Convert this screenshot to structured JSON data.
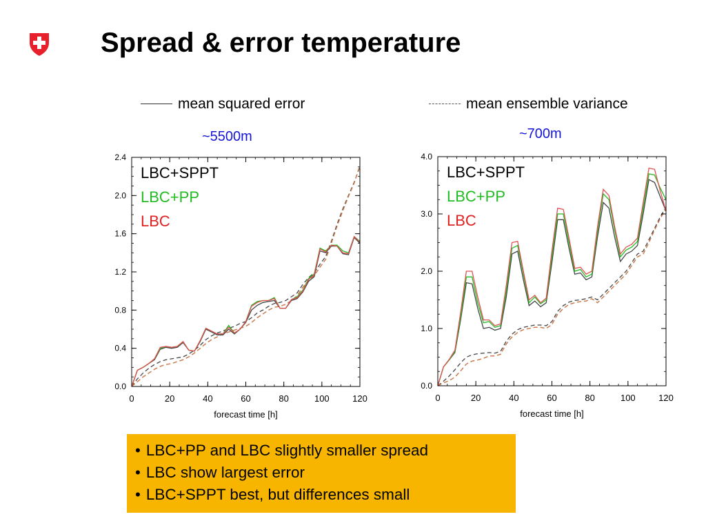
{
  "slide": {
    "title": "Spread & error temperature",
    "legend": {
      "solid_label": "mean squared error",
      "dashed_label": "mean ensemble variance"
    },
    "left_height": "~5500m",
    "right_height": "~700m",
    "bullets": [
      "LBC+PP and LBC slightly smaller spread",
      "LBC show largest error",
      "LBC+SPPT best, but differences small"
    ],
    "colors": {
      "height_label": "#1414d8",
      "callout_bg": "#f7b500",
      "logo_red": "#e8202b"
    }
  },
  "chart_data": [
    {
      "type": "line",
      "height_label": "~5500m",
      "xlabel": "forecast time [h]",
      "ylabel": "",
      "xlim": [
        0,
        120
      ],
      "ylim": [
        0,
        2.4
      ],
      "xticks": [
        0,
        20,
        40,
        60,
        80,
        100,
        120
      ],
      "yticks": [
        0.0,
        0.4,
        0.8,
        1.2,
        1.6,
        2.0,
        2.4
      ],
      "ytick_labels": [
        "0.0",
        "0.4",
        "0.8",
        "1.2",
        "1.6",
        "2.0",
        "2.4"
      ],
      "grid": false,
      "legend_labels": [
        {
          "text": "LBC+SPPT",
          "color": "#000000"
        },
        {
          "text": "LBC+PP",
          "color": "#22bb22"
        },
        {
          "text": "LBC",
          "color": "#e02020"
        }
      ],
      "x": [
        0,
        3,
        6,
        9,
        12,
        15,
        18,
        21,
        24,
        27,
        30,
        33,
        36,
        39,
        42,
        45,
        48,
        51,
        54,
        57,
        60,
        63,
        66,
        69,
        72,
        75,
        78,
        81,
        84,
        87,
        90,
        93,
        96,
        99,
        102,
        105,
        108,
        111,
        114,
        117,
        120
      ],
      "series": [
        {
          "name": "LBC+SPPT",
          "style": "solid",
          "color": "#444444",
          "values": [
            0.0,
            0.17,
            0.2,
            0.24,
            0.28,
            0.39,
            0.41,
            0.4,
            0.41,
            0.46,
            0.38,
            0.37,
            0.47,
            0.6,
            0.57,
            0.54,
            0.54,
            0.6,
            0.55,
            0.6,
            0.67,
            0.8,
            0.85,
            0.88,
            0.89,
            0.9,
            0.82,
            0.82,
            0.9,
            0.92,
            0.99,
            1.1,
            1.15,
            1.42,
            1.4,
            1.47,
            1.47,
            1.39,
            1.38,
            1.56,
            1.5
          ]
        },
        {
          "name": "LBC+PP",
          "style": "solid",
          "color": "#22bb22",
          "values": [
            0.0,
            0.17,
            0.2,
            0.24,
            0.29,
            0.4,
            0.42,
            0.41,
            0.42,
            0.47,
            0.38,
            0.37,
            0.48,
            0.61,
            0.58,
            0.55,
            0.55,
            0.64,
            0.56,
            0.6,
            0.68,
            0.85,
            0.89,
            0.9,
            0.9,
            0.93,
            0.82,
            0.82,
            0.91,
            0.94,
            1.01,
            1.13,
            1.18,
            1.45,
            1.42,
            1.48,
            1.48,
            1.42,
            1.4,
            1.57,
            1.52
          ]
        },
        {
          "name": "LBC",
          "style": "solid",
          "color": "#e05050",
          "values": [
            0.0,
            0.17,
            0.2,
            0.24,
            0.29,
            0.41,
            0.42,
            0.41,
            0.42,
            0.47,
            0.38,
            0.37,
            0.48,
            0.61,
            0.58,
            0.55,
            0.55,
            0.62,
            0.56,
            0.6,
            0.68,
            0.84,
            0.88,
            0.9,
            0.9,
            0.92,
            0.82,
            0.82,
            0.91,
            0.93,
            1.0,
            1.12,
            1.17,
            1.44,
            1.41,
            1.48,
            1.47,
            1.4,
            1.39,
            1.57,
            1.51
          ]
        },
        {
          "name": "LBC+SPPT",
          "style": "dashed",
          "color": "#444444",
          "values": [
            0.0,
            0.08,
            0.14,
            0.19,
            0.23,
            0.26,
            0.28,
            0.29,
            0.3,
            0.31,
            0.34,
            0.38,
            0.43,
            0.49,
            0.53,
            0.56,
            0.58,
            0.61,
            0.63,
            0.66,
            0.68,
            0.72,
            0.77,
            0.8,
            0.84,
            0.87,
            0.88,
            0.9,
            0.94,
            0.98,
            1.07,
            1.14,
            1.19,
            1.28,
            1.36,
            1.52,
            1.7,
            1.86,
            2.0,
            2.14,
            2.3
          ]
        },
        {
          "name": "LBC+PP",
          "style": "dashed",
          "color": "#22bb22",
          "values": [
            0.0,
            0.05,
            0.1,
            0.14,
            0.18,
            0.21,
            0.23,
            0.24,
            0.26,
            0.28,
            0.31,
            0.35,
            0.4,
            0.45,
            0.49,
            0.52,
            0.55,
            0.57,
            0.59,
            0.61,
            0.63,
            0.67,
            0.72,
            0.76,
            0.8,
            0.83,
            0.84,
            0.86,
            0.9,
            0.95,
            1.04,
            1.11,
            1.16,
            1.25,
            1.33,
            1.5,
            1.68,
            1.84,
            1.99,
            2.13,
            2.32
          ]
        },
        {
          "name": "LBC",
          "style": "dashed",
          "color": "#e07050",
          "values": [
            0.0,
            0.05,
            0.1,
            0.14,
            0.18,
            0.21,
            0.23,
            0.24,
            0.26,
            0.28,
            0.31,
            0.35,
            0.4,
            0.45,
            0.49,
            0.52,
            0.55,
            0.57,
            0.59,
            0.61,
            0.63,
            0.67,
            0.72,
            0.76,
            0.8,
            0.83,
            0.84,
            0.86,
            0.9,
            0.95,
            1.04,
            1.11,
            1.16,
            1.25,
            1.33,
            1.5,
            1.68,
            1.84,
            1.99,
            2.13,
            2.31
          ]
        }
      ]
    },
    {
      "type": "line",
      "height_label": "~700m",
      "xlabel": "forecast time [h]",
      "ylabel": "",
      "xlim": [
        0,
        120
      ],
      "ylim": [
        0,
        4.0
      ],
      "xticks": [
        0,
        20,
        40,
        60,
        80,
        100,
        120
      ],
      "yticks": [
        0.0,
        1.0,
        2.0,
        3.0,
        4.0
      ],
      "ytick_labels": [
        "0.0",
        "1.0",
        "2.0",
        "3.0",
        "4.0"
      ],
      "grid": false,
      "legend_labels": [
        {
          "text": "LBC+SPPT",
          "color": "#000000"
        },
        {
          "text": "LBC+PP",
          "color": "#22bb22"
        },
        {
          "text": "LBC",
          "color": "#e02020"
        }
      ],
      "x": [
        0,
        3,
        6,
        9,
        12,
        15,
        18,
        21,
        24,
        27,
        30,
        33,
        36,
        39,
        42,
        45,
        48,
        51,
        54,
        57,
        60,
        63,
        66,
        69,
        72,
        75,
        78,
        81,
        84,
        87,
        90,
        93,
        96,
        99,
        102,
        105,
        108,
        111,
        114,
        117,
        120
      ],
      "series": [
        {
          "name": "LBC+SPPT",
          "style": "solid",
          "color": "#444444",
          "values": [
            0.0,
            0.33,
            0.45,
            0.58,
            1.15,
            1.8,
            1.78,
            1.35,
            1.0,
            1.02,
            0.97,
            1.0,
            1.55,
            2.3,
            2.35,
            1.85,
            1.4,
            1.48,
            1.38,
            1.45,
            2.15,
            2.9,
            2.9,
            2.4,
            1.95,
            1.97,
            1.85,
            1.9,
            2.6,
            3.2,
            3.1,
            2.6,
            2.17,
            2.3,
            2.35,
            2.45,
            3.0,
            3.6,
            3.55,
            3.3,
            3.05
          ]
        },
        {
          "name": "LBC+PP",
          "style": "solid",
          "color": "#22bb22",
          "values": [
            0.0,
            0.33,
            0.45,
            0.6,
            1.2,
            1.9,
            1.9,
            1.45,
            1.1,
            1.12,
            1.02,
            1.05,
            1.65,
            2.4,
            2.45,
            1.95,
            1.45,
            1.55,
            1.43,
            1.5,
            2.25,
            3.0,
            3.0,
            2.5,
            2.0,
            2.03,
            1.9,
            1.95,
            2.7,
            3.35,
            3.25,
            2.72,
            2.25,
            2.37,
            2.42,
            2.52,
            3.1,
            3.7,
            3.68,
            3.45,
            3.25
          ]
        },
        {
          "name": "LBC",
          "style": "solid",
          "color": "#e05050",
          "values": [
            0.0,
            0.33,
            0.46,
            0.62,
            1.28,
            2.0,
            2.0,
            1.55,
            1.15,
            1.15,
            1.05,
            1.08,
            1.75,
            2.5,
            2.52,
            2.0,
            1.5,
            1.58,
            1.45,
            1.53,
            2.35,
            3.1,
            3.08,
            2.58,
            2.05,
            2.07,
            1.95,
            2.0,
            2.78,
            3.43,
            3.32,
            2.78,
            2.3,
            2.42,
            2.47,
            2.58,
            3.2,
            3.8,
            3.78,
            3.4,
            3.05
          ]
        },
        {
          "name": "LBC+SPPT",
          "style": "dashed",
          "color": "#444444",
          "values": [
            0.0,
            0.08,
            0.17,
            0.28,
            0.4,
            0.5,
            0.54,
            0.56,
            0.57,
            0.58,
            0.57,
            0.6,
            0.78,
            0.9,
            0.98,
            1.02,
            1.04,
            1.06,
            1.06,
            1.05,
            1.12,
            1.3,
            1.4,
            1.46,
            1.49,
            1.5,
            1.52,
            1.55,
            1.5,
            1.6,
            1.7,
            1.8,
            1.9,
            2.0,
            2.15,
            2.3,
            2.35,
            2.55,
            2.75,
            2.95,
            3.12
          ]
        },
        {
          "name": "LBC+PP",
          "style": "dashed",
          "color": "#22bb22",
          "values": [
            0.0,
            0.05,
            0.09,
            0.15,
            0.26,
            0.38,
            0.43,
            0.45,
            0.48,
            0.52,
            0.52,
            0.55,
            0.73,
            0.85,
            0.93,
            0.98,
            1.0,
            1.02,
            1.02,
            1.0,
            1.07,
            1.25,
            1.35,
            1.42,
            1.45,
            1.47,
            1.48,
            1.52,
            1.45,
            1.55,
            1.65,
            1.75,
            1.85,
            1.95,
            2.1,
            2.25,
            2.3,
            2.5,
            2.72,
            2.92,
            3.1
          ]
        },
        {
          "name": "LBC",
          "style": "dashed",
          "color": "#e07050",
          "values": [
            0.0,
            0.05,
            0.09,
            0.15,
            0.26,
            0.38,
            0.43,
            0.45,
            0.48,
            0.52,
            0.52,
            0.55,
            0.73,
            0.85,
            0.93,
            0.98,
            1.0,
            1.02,
            1.02,
            1.0,
            1.07,
            1.25,
            1.35,
            1.42,
            1.45,
            1.47,
            1.48,
            1.52,
            1.45,
            1.55,
            1.65,
            1.75,
            1.85,
            1.95,
            2.1,
            2.25,
            2.3,
            2.5,
            2.72,
            2.92,
            3.09
          ]
        }
      ]
    }
  ]
}
